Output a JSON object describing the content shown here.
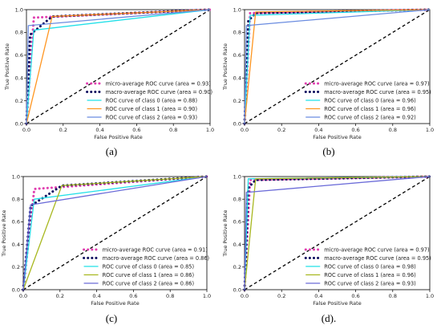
{
  "chart_data": [
    {
      "type": "line",
      "caption": "(a)",
      "xlabel": "False Positive Rate",
      "ylabel": "True Positive Rate",
      "xlim": [
        0,
        1
      ],
      "ylim": [
        0,
        1
      ],
      "xticks": [
        "0.0",
        "0.2",
        "0.4",
        "0.6",
        "0.8",
        "1.0"
      ],
      "yticks": [
        "0.0",
        "0.2",
        "0.4",
        "0.6",
        "0.8",
        "1.0"
      ],
      "legend_position": "lower-right",
      "series": [
        {
          "name": "micro-average ROC curve (area = 0.93)",
          "style": "dotted",
          "color": "#e040b0",
          "x": [
            0,
            0.04,
            1
          ],
          "y": [
            0,
            0.93,
            1
          ]
        },
        {
          "name": "macro-average ROC curve (area = 0.90)",
          "style": "dotted",
          "color": "#101060",
          "x": [
            0,
            0.02,
            0.14,
            1
          ],
          "y": [
            0,
            0.78,
            0.94,
            1
          ]
        },
        {
          "name": "ROC curve of class 0 (area = 0.88)",
          "style": "solid",
          "color": "#22e0e8",
          "x": [
            0,
            0.04,
            1
          ],
          "y": [
            0,
            0.82,
            1
          ]
        },
        {
          "name": "ROC curve of class 1 (area = 0.90)",
          "style": "solid",
          "color": "#ff9520",
          "x": [
            0,
            0.14,
            1
          ],
          "y": [
            0,
            0.94,
            1
          ]
        },
        {
          "name": "ROC curve of class 2 (area = 0.93)",
          "style": "solid",
          "color": "#6a8ce0",
          "x": [
            0,
            0.01,
            1
          ],
          "y": [
            0,
            0.86,
            1
          ]
        },
        {
          "name": "",
          "style": "dashed",
          "color": "#000000",
          "x": [
            0,
            1
          ],
          "y": [
            0,
            1
          ]
        }
      ]
    },
    {
      "type": "line",
      "caption": "(b)",
      "xlabel": "False Positive Rate",
      "ylabel": "True Positive Rate",
      "xlim": [
        0,
        1
      ],
      "ylim": [
        0,
        1
      ],
      "xticks": [
        "0.0",
        "0.2",
        "0.4",
        "0.6",
        "0.8",
        "1.0"
      ],
      "yticks": [
        "0.0",
        "0.2",
        "0.4",
        "0.6",
        "0.8",
        "1.0"
      ],
      "legend_position": "lower-right",
      "series": [
        {
          "name": "micro-average ROC curve (area = 0.97)",
          "style": "dotted",
          "color": "#e040b0",
          "x": [
            0,
            0.03,
            1
          ],
          "y": [
            0,
            0.97,
            1
          ]
        },
        {
          "name": "macro-average ROC curve (area = 0.95)",
          "style": "dotted",
          "color": "#101060",
          "x": [
            0,
            0.02,
            0.06,
            1
          ],
          "y": [
            0,
            0.9,
            0.97,
            1
          ]
        },
        {
          "name": "ROC curve of class 0 (area = 0.96)",
          "style": "solid",
          "color": "#22e0e8",
          "x": [
            0,
            0.03,
            1
          ],
          "y": [
            0,
            0.95,
            1
          ]
        },
        {
          "name": "ROC curve of class 1 (area = 0.96)",
          "style": "solid",
          "color": "#ff9520",
          "x": [
            0,
            0.06,
            1
          ],
          "y": [
            0,
            0.98,
            1
          ]
        },
        {
          "name": "ROC curve of class 2 (area = 0.92)",
          "style": "solid",
          "color": "#6a8ce0",
          "x": [
            0,
            0.01,
            1
          ],
          "y": [
            0,
            0.86,
            1
          ]
        },
        {
          "name": "",
          "style": "dashed",
          "color": "#000000",
          "x": [
            0,
            1
          ],
          "y": [
            0,
            1
          ]
        }
      ]
    },
    {
      "type": "line",
      "caption": "(c)",
      "xlabel": "False Positive Rate",
      "ylabel": "True Positive Rate",
      "xlim": [
        0,
        1
      ],
      "ylim": [
        0,
        1
      ],
      "xticks": [
        "0.0",
        "0.2",
        "0.4",
        "0.6",
        "0.8",
        "1.0"
      ],
      "yticks": [
        "0.0",
        "0.2",
        "0.4",
        "0.6",
        "0.8",
        "1.0"
      ],
      "legend_position": "lower-right",
      "series": [
        {
          "name": "micro-average ROC curve (area = 0.91)",
          "style": "dotted",
          "color": "#e040b0",
          "x": [
            0,
            0.06,
            1
          ],
          "y": [
            0,
            0.89,
            1
          ]
        },
        {
          "name": "macro-average ROC curve (area = 0.86)",
          "style": "dotted",
          "color": "#101060",
          "x": [
            0,
            0.04,
            0.21,
            1
          ],
          "y": [
            0,
            0.74,
            0.92,
            1
          ]
        },
        {
          "name": "ROC curve of class 0 (area = 0.85)",
          "style": "solid",
          "color": "#22e0e8",
          "x": [
            0,
            0.06,
            1
          ],
          "y": [
            0,
            0.8,
            1
          ]
        },
        {
          "name": "ROC curve of class 1 (area = 0.86)",
          "style": "solid",
          "color": "#a8b820",
          "x": [
            0,
            0.21,
            1
          ],
          "y": [
            0,
            0.92,
            1
          ]
        },
        {
          "name": "ROC curve of class 2 (area = 0.86)",
          "style": "solid",
          "color": "#6a6ad8",
          "x": [
            0,
            0.04,
            1
          ],
          "y": [
            0,
            0.75,
            1
          ]
        },
        {
          "name": "",
          "style": "dashed",
          "color": "#000000",
          "x": [
            0,
            1
          ],
          "y": [
            0,
            1
          ]
        }
      ]
    },
    {
      "type": "line",
      "caption": "(d).",
      "xlabel": "False Positive Rate",
      "ylabel": "True Positive Rate",
      "xlim": [
        0,
        1
      ],
      "ylim": [
        0,
        1
      ],
      "xticks": [
        "0.0",
        "0.2",
        "0.4",
        "0.6",
        "0.8",
        "1.0"
      ],
      "yticks": [
        "0.0",
        "0.2",
        "0.4",
        "0.6",
        "0.8",
        "1.0"
      ],
      "legend_position": "lower-right",
      "series": [
        {
          "name": "micro-average ROC curve (area = 0.97)",
          "style": "dotted",
          "color": "#e040b0",
          "x": [
            0,
            0.03,
            1
          ],
          "y": [
            0,
            0.97,
            1
          ]
        },
        {
          "name": "macro-average ROC curve (area = 0.95)",
          "style": "dotted",
          "color": "#101060",
          "x": [
            0,
            0.02,
            0.06,
            1
          ],
          "y": [
            0,
            0.9,
            0.97,
            1
          ]
        },
        {
          "name": "ROC curve of class 0 (area = 0.98)",
          "style": "solid",
          "color": "#22e0e8",
          "x": [
            0,
            0.02,
            1
          ],
          "y": [
            0,
            0.98,
            1
          ]
        },
        {
          "name": "ROC curve of class 1 (area = 0.96)",
          "style": "solid",
          "color": "#a8b820",
          "x": [
            0,
            0.06,
            1
          ],
          "y": [
            0,
            0.98,
            1
          ]
        },
        {
          "name": "ROC curve of class 2 (area = 0.93)",
          "style": "solid",
          "color": "#6a6ad8",
          "x": [
            0,
            0.01,
            1
          ],
          "y": [
            0,
            0.86,
            1
          ]
        },
        {
          "name": "",
          "style": "dashed",
          "color": "#000000",
          "x": [
            0,
            1
          ],
          "y": [
            0,
            1
          ]
        }
      ]
    }
  ]
}
